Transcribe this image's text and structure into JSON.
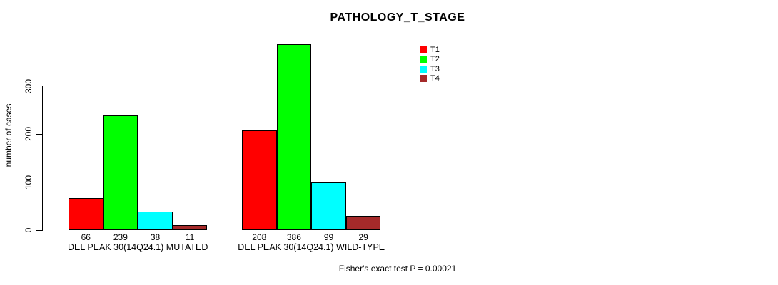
{
  "chart_data": {
    "type": "bar",
    "title": "PATHOLOGY_T_STAGE",
    "ylabel": "number of cases",
    "xlabel": "",
    "yticks": [
      0,
      100,
      200,
      300
    ],
    "ylim": [
      0,
      390
    ],
    "grid": false,
    "legend_position": "top-right",
    "bar_value_labels": true,
    "categories": [
      "DEL PEAK 30(14Q24.1) MUTATED",
      "DEL PEAK 30(14Q24.1) WILD-TYPE"
    ],
    "series": [
      {
        "name": "T1",
        "color": "#FF0000",
        "values": [
          66,
          208
        ]
      },
      {
        "name": "T2",
        "color": "#00FF00",
        "values": [
          239,
          386
        ]
      },
      {
        "name": "T3",
        "color": "#00FFFF",
        "values": [
          38,
          99
        ]
      },
      {
        "name": "T4",
        "color": "#A52A2A",
        "values": [
          11,
          29
        ]
      }
    ],
    "annotation": "Fisher's exact test P = 0.00021",
    "colors": {
      "background": "#FFFFFF",
      "axis": "#000000",
      "text": "#000000"
    }
  }
}
